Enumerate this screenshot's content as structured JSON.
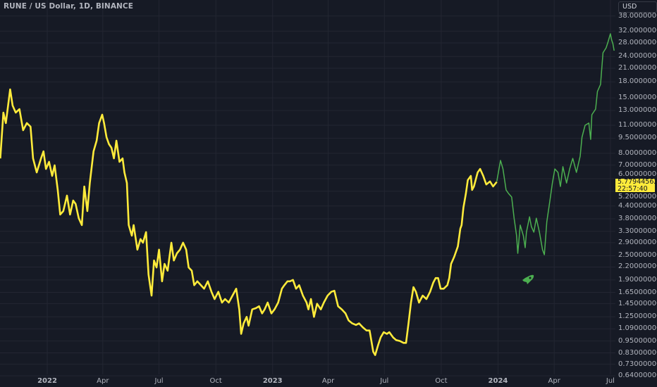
{
  "header": {
    "title": "RUNE / US Dollar, 1D, BINANCE"
  },
  "price_axis": {
    "currency_button": "USD"
  },
  "last_price": {
    "value": "5.77944562",
    "countdown": "22:57:40",
    "color": "#ffeb3b"
  },
  "icons": {
    "marker": "rocket-icon"
  },
  "colors": {
    "background": "#161a25",
    "grid": "#232632",
    "axis_text": "#b2b5be",
    "series_main": "#ffeb3b",
    "series_projection": "#4caf50"
  },
  "chart_data": {
    "type": "line",
    "title": "RUNE / US Dollar, 1D, BINANCE",
    "xlabel": "",
    "ylabel": "",
    "y_scale": "log",
    "ylim": [
      0.64,
      38
    ],
    "xlim": [
      "2021-10-17",
      "2024-07-07"
    ],
    "grid": true,
    "legend": "none",
    "y_ticks": [
      "38.00000000",
      "32.00000000",
      "28.00000000",
      "24.00000000",
      "21.00000000",
      "18.00000000",
      "15.00000000",
      "13.00000000",
      "11.00000000",
      "9.50000000",
      "8.00000000",
      "7.00000000",
      "6.00000000",
      "5.20000000",
      "4.40000000",
      "3.80000000",
      "3.30000000",
      "2.90000000",
      "2.50000000",
      "2.20000000",
      "1.90000000",
      "1.65000000",
      "1.45000000",
      "1.25000000",
      "1.09000000",
      "0.95000000",
      "0.83000000",
      "0.73000000",
      "0.64000000"
    ],
    "x_ticks": [
      {
        "label": "2022",
        "date": "2022-01-01",
        "year": true
      },
      {
        "label": "Apr",
        "date": "2022-04-01"
      },
      {
        "label": "Jul",
        "date": "2022-07-01"
      },
      {
        "label": "Oct",
        "date": "2022-10-01"
      },
      {
        "label": "2023",
        "date": "2023-01-01",
        "year": true
      },
      {
        "label": "Apr",
        "date": "2023-04-01"
      },
      {
        "label": "Jul",
        "date": "2023-07-01"
      },
      {
        "label": "Oct",
        "date": "2023-10-01"
      },
      {
        "label": "2024",
        "date": "2024-01-01",
        "year": true
      },
      {
        "label": "Apr",
        "date": "2024-04-01"
      },
      {
        "label": "Jul",
        "date": "2024-07-01"
      }
    ],
    "series": [
      {
        "color": "#ffeb3b",
        "points": [
          [
            "2021-10-17",
            7.55
          ],
          [
            "2021-10-22",
            12.7
          ],
          [
            "2021-10-26",
            11.27
          ],
          [
            "2021-11-02",
            16.53
          ],
          [
            "2021-11-06",
            13.75
          ],
          [
            "2021-11-11",
            12.7
          ],
          [
            "2021-11-17",
            13.21
          ],
          [
            "2021-11-23",
            10.4
          ],
          [
            "2021-11-29",
            11.27
          ],
          [
            "2021-12-05",
            10.82
          ],
          [
            "2021-12-09",
            7.55
          ],
          [
            "2021-12-15",
            6.44
          ],
          [
            "2021-12-22",
            7.55
          ],
          [
            "2021-12-26",
            8.18
          ],
          [
            "2021-12-30",
            6.7
          ],
          [
            "2022-01-04",
            7.26
          ],
          [
            "2022-01-09",
            6.19
          ],
          [
            "2022-01-13",
            6.98
          ],
          [
            "2022-01-18",
            5.28
          ],
          [
            "2022-01-22",
            3.99
          ],
          [
            "2022-01-27",
            4.15
          ],
          [
            "2022-02-02",
            4.95
          ],
          [
            "2022-02-07",
            3.99
          ],
          [
            "2022-02-12",
            4.68
          ],
          [
            "2022-02-16",
            4.5
          ],
          [
            "2022-02-21",
            3.83
          ],
          [
            "2022-02-26",
            3.54
          ],
          [
            "2022-03-02",
            5.49
          ],
          [
            "2022-03-07",
            4.15
          ],
          [
            "2022-03-11",
            5.71
          ],
          [
            "2022-03-17",
            8.18
          ],
          [
            "2022-03-22",
            9.23
          ],
          [
            "2022-03-26",
            11.27
          ],
          [
            "2022-03-31",
            12.4
          ],
          [
            "2022-04-03",
            11.27
          ],
          [
            "2022-04-07",
            9.6
          ],
          [
            "2022-04-11",
            8.87
          ],
          [
            "2022-04-15",
            8.52
          ],
          [
            "2022-04-19",
            7.55
          ],
          [
            "2022-04-23",
            9.23
          ],
          [
            "2022-04-28",
            7.26
          ],
          [
            "2022-05-03",
            7.55
          ],
          [
            "2022-05-06",
            6.44
          ],
          [
            "2022-05-10",
            5.71
          ],
          [
            "2022-05-13",
            3.54
          ],
          [
            "2022-05-18",
            3.14
          ],
          [
            "2022-05-21",
            3.54
          ],
          [
            "2022-05-27",
            2.68
          ],
          [
            "2022-06-01",
            3.02
          ],
          [
            "2022-06-05",
            2.9
          ],
          [
            "2022-06-10",
            3.27
          ],
          [
            "2022-06-14",
            2.02
          ],
          [
            "2022-06-19",
            1.59
          ],
          [
            "2022-06-23",
            2.37
          ],
          [
            "2022-06-27",
            2.19
          ],
          [
            "2022-07-01",
            2.68
          ],
          [
            "2022-07-06",
            1.87
          ],
          [
            "2022-07-10",
            2.28
          ],
          [
            "2022-07-15",
            2.11
          ],
          [
            "2022-07-21",
            2.9
          ],
          [
            "2022-07-25",
            2.37
          ],
          [
            "2022-07-30",
            2.57
          ],
          [
            "2022-08-04",
            2.68
          ],
          [
            "2022-08-09",
            2.9
          ],
          [
            "2022-08-14",
            2.68
          ],
          [
            "2022-08-18",
            2.19
          ],
          [
            "2022-08-23",
            2.11
          ],
          [
            "2022-08-27",
            1.79
          ],
          [
            "2022-09-01",
            1.87
          ],
          [
            "2022-09-12",
            1.72
          ],
          [
            "2022-09-18",
            1.87
          ],
          [
            "2022-09-24",
            1.66
          ],
          [
            "2022-09-29",
            1.53
          ],
          [
            "2022-10-05",
            1.66
          ],
          [
            "2022-10-11",
            1.47
          ],
          [
            "2022-10-16",
            1.53
          ],
          [
            "2022-10-22",
            1.47
          ],
          [
            "2022-10-28",
            1.59
          ],
          [
            "2022-11-03",
            1.72
          ],
          [
            "2022-11-08",
            1.36
          ],
          [
            "2022-11-11",
            1.03
          ],
          [
            "2022-11-15",
            1.16
          ],
          [
            "2022-11-20",
            1.25
          ],
          [
            "2022-11-23",
            1.13
          ],
          [
            "2022-11-29",
            1.36
          ],
          [
            "2022-12-05",
            1.38
          ],
          [
            "2022-12-10",
            1.41
          ],
          [
            "2022-12-15",
            1.3
          ],
          [
            "2022-12-19",
            1.36
          ],
          [
            "2022-12-24",
            1.47
          ],
          [
            "2022-12-30",
            1.3
          ],
          [
            "2023-01-04",
            1.36
          ],
          [
            "2023-01-10",
            1.47
          ],
          [
            "2023-01-16",
            1.72
          ],
          [
            "2023-01-20",
            1.79
          ],
          [
            "2023-01-25",
            1.87
          ],
          [
            "2023-01-29",
            1.87
          ],
          [
            "2023-02-03",
            1.9
          ],
          [
            "2023-02-08",
            1.72
          ],
          [
            "2023-02-13",
            1.79
          ],
          [
            "2023-02-19",
            1.59
          ],
          [
            "2023-02-25",
            1.47
          ],
          [
            "2023-02-28",
            1.36
          ],
          [
            "2023-03-04",
            1.53
          ],
          [
            "2023-03-09",
            1.25
          ],
          [
            "2023-03-14",
            1.45
          ],
          [
            "2023-03-20",
            1.36
          ],
          [
            "2023-03-25",
            1.47
          ],
          [
            "2023-03-31",
            1.59
          ],
          [
            "2023-04-06",
            1.66
          ],
          [
            "2023-04-11",
            1.68
          ],
          [
            "2023-04-17",
            1.41
          ],
          [
            "2023-04-23",
            1.36
          ],
          [
            "2023-04-29",
            1.3
          ],
          [
            "2023-05-04",
            1.2
          ],
          [
            "2023-05-10",
            1.16
          ],
          [
            "2023-05-16",
            1.14
          ],
          [
            "2023-05-21",
            1.16
          ],
          [
            "2023-05-27",
            1.11
          ],
          [
            "2023-06-02",
            1.07
          ],
          [
            "2023-06-07",
            1.07
          ],
          [
            "2023-06-13",
            0.84
          ],
          [
            "2023-06-16",
            0.81
          ],
          [
            "2023-06-21",
            0.91
          ],
          [
            "2023-06-25",
            0.99
          ],
          [
            "2023-06-30",
            1.05
          ],
          [
            "2023-07-05",
            1.03
          ],
          [
            "2023-07-09",
            1.05
          ],
          [
            "2023-07-15",
            0.99
          ],
          [
            "2023-07-20",
            0.96
          ],
          [
            "2023-07-26",
            0.95
          ],
          [
            "2023-08-01",
            0.93
          ],
          [
            "2023-08-05",
            0.93
          ],
          [
            "2023-08-09",
            1.16
          ],
          [
            "2023-08-13",
            1.47
          ],
          [
            "2023-08-17",
            1.75
          ],
          [
            "2023-08-21",
            1.66
          ],
          [
            "2023-08-26",
            1.47
          ],
          [
            "2023-09-01",
            1.59
          ],
          [
            "2023-09-07",
            1.53
          ],
          [
            "2023-09-13",
            1.66
          ],
          [
            "2023-09-18",
            1.84
          ],
          [
            "2023-09-22",
            1.94
          ],
          [
            "2023-09-26",
            1.94
          ],
          [
            "2023-09-30",
            1.72
          ],
          [
            "2023-10-05",
            1.72
          ],
          [
            "2023-10-11",
            1.79
          ],
          [
            "2023-10-14",
            1.94
          ],
          [
            "2023-10-17",
            2.28
          ],
          [
            "2023-10-22",
            2.47
          ],
          [
            "2023-10-28",
            2.78
          ],
          [
            "2023-11-01",
            3.4
          ],
          [
            "2023-11-03",
            3.54
          ],
          [
            "2023-11-06",
            4.32
          ],
          [
            "2023-11-10",
            5.07
          ],
          [
            "2023-11-13",
            5.9
          ],
          [
            "2023-11-18",
            6.19
          ],
          [
            "2023-11-20",
            5.28
          ],
          [
            "2023-11-23",
            5.49
          ],
          [
            "2023-11-29",
            6.44
          ],
          [
            "2023-12-03",
            6.7
          ],
          [
            "2023-12-08",
            6.19
          ],
          [
            "2023-12-13",
            5.62
          ],
          [
            "2023-12-19",
            5.81
          ],
          [
            "2023-12-24",
            5.49
          ],
          [
            "2023-12-30",
            5.78
          ]
        ]
      },
      {
        "color": "#4caf50",
        "points": [
          [
            "2023-12-30",
            5.81
          ],
          [
            "2024-01-05",
            7.38
          ],
          [
            "2024-01-09",
            6.7
          ],
          [
            "2024-01-14",
            5.28
          ],
          [
            "2024-01-18",
            5.07
          ],
          [
            "2024-01-23",
            4.87
          ],
          [
            "2024-01-27",
            3.83
          ],
          [
            "2024-01-31",
            3.14
          ],
          [
            "2024-02-02",
            2.57
          ],
          [
            "2024-02-06",
            3.54
          ],
          [
            "2024-02-11",
            3.14
          ],
          [
            "2024-02-14",
            2.74
          ],
          [
            "2024-02-16",
            3.27
          ],
          [
            "2024-02-21",
            3.89
          ],
          [
            "2024-02-24",
            3.48
          ],
          [
            "2024-02-28",
            3.27
          ],
          [
            "2024-03-03",
            3.83
          ],
          [
            "2024-03-08",
            3.27
          ],
          [
            "2024-03-13",
            2.68
          ],
          [
            "2024-03-16",
            2.53
          ],
          [
            "2024-03-20",
            3.68
          ],
          [
            "2024-03-25",
            4.68
          ],
          [
            "2024-03-29",
            5.71
          ],
          [
            "2024-04-02",
            6.7
          ],
          [
            "2024-04-07",
            6.44
          ],
          [
            "2024-04-11",
            5.49
          ],
          [
            "2024-04-15",
            6.87
          ],
          [
            "2024-04-21",
            5.71
          ],
          [
            "2024-04-26",
            6.7
          ],
          [
            "2024-05-01",
            7.55
          ],
          [
            "2024-05-07",
            6.44
          ],
          [
            "2024-05-13",
            7.74
          ],
          [
            "2024-05-16",
            9.6
          ],
          [
            "2024-05-21",
            11.0
          ],
          [
            "2024-05-27",
            11.27
          ],
          [
            "2024-05-30",
            9.37
          ],
          [
            "2024-06-01",
            12.4
          ],
          [
            "2024-06-07",
            13.21
          ],
          [
            "2024-06-10",
            16.14
          ],
          [
            "2024-06-15",
            17.48
          ],
          [
            "2024-06-19",
            25.04
          ],
          [
            "2024-06-24",
            26.48
          ],
          [
            "2024-06-27",
            28.22
          ],
          [
            "2024-07-01",
            31.07
          ],
          [
            "2024-07-03",
            28.91
          ],
          [
            "2024-07-05",
            27.78
          ],
          [
            "2024-07-07",
            25.64
          ]
        ]
      }
    ]
  }
}
